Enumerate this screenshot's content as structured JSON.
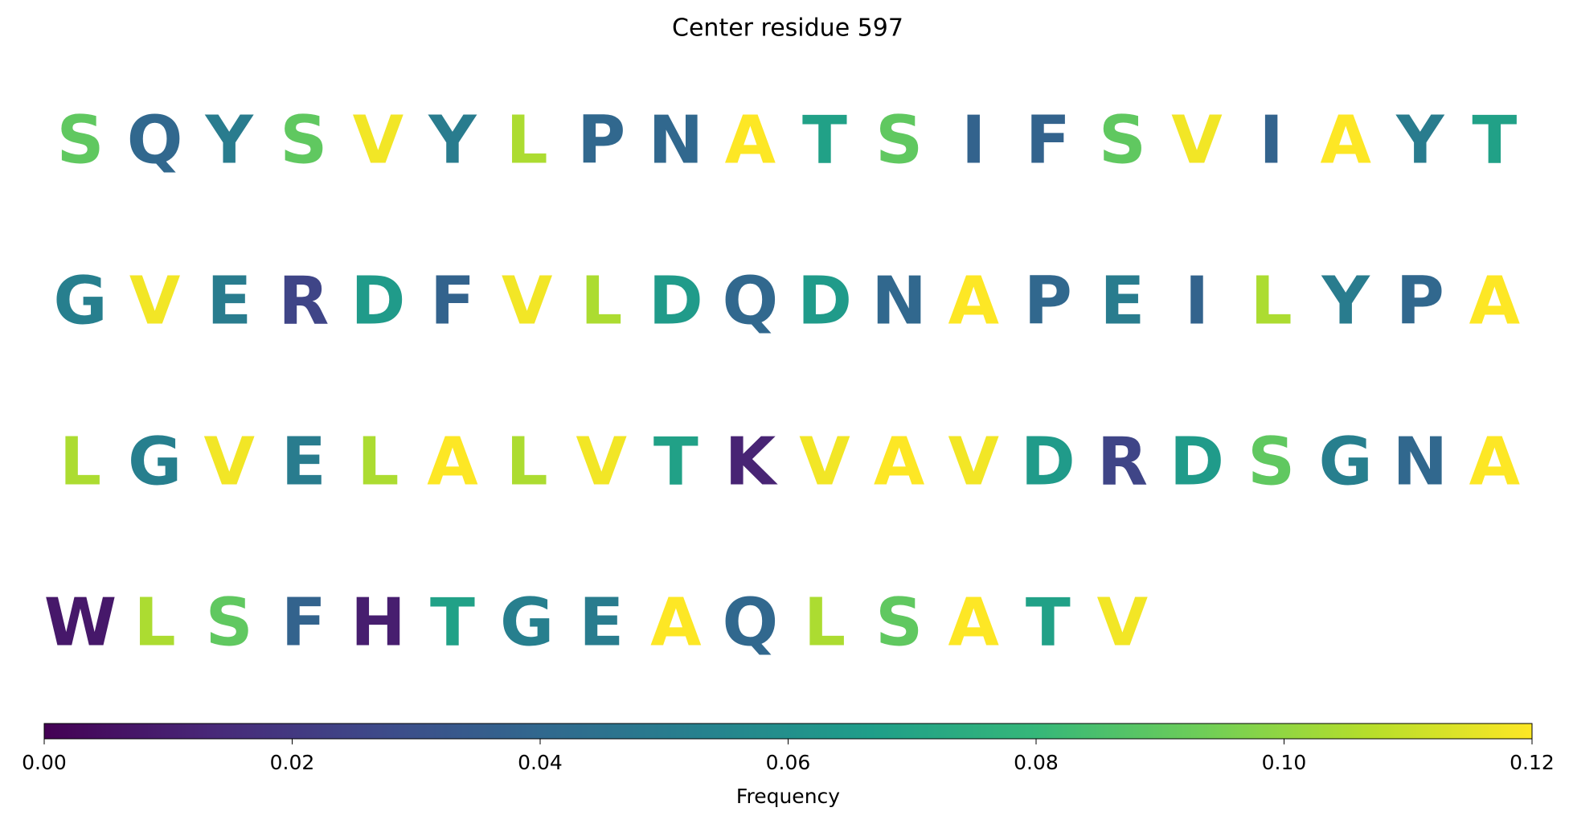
{
  "chart_data": {
    "type": "sequence",
    "title": "Center residue 597",
    "colormap": "viridis",
    "rows": [
      {
        "letters": [
          "S",
          "Q",
          "Y",
          "S",
          "V",
          "Y",
          "L",
          "P",
          "N",
          "A",
          "T",
          "S",
          "I",
          "F",
          "S",
          "V",
          "I",
          "A",
          "Y",
          "T"
        ],
        "values": [
          0.09,
          0.04,
          0.05,
          0.09,
          0.118,
          0.05,
          0.105,
          0.04,
          0.04,
          0.12,
          0.068,
          0.09,
          0.038,
          0.038,
          0.09,
          0.118,
          0.038,
          0.12,
          0.05,
          0.068
        ]
      },
      {
        "letters": [
          "G",
          "V",
          "E",
          "R",
          "D",
          "F",
          "V",
          "L",
          "D",
          "Q",
          "D",
          "N",
          "A",
          "P",
          "E",
          "I",
          "L",
          "Y",
          "P",
          "A"
        ],
        "values": [
          0.052,
          0.118,
          0.05,
          0.025,
          0.065,
          0.038,
          0.118,
          0.105,
          0.065,
          0.04,
          0.065,
          0.04,
          0.12,
          0.04,
          0.05,
          0.038,
          0.105,
          0.05,
          0.04,
          0.12
        ]
      },
      {
        "letters": [
          "L",
          "G",
          "V",
          "E",
          "L",
          "A",
          "L",
          "V",
          "T",
          "K",
          "V",
          "A",
          "V",
          "D",
          "R",
          "D",
          "S",
          "G",
          "N",
          "A"
        ],
        "values": [
          0.105,
          0.052,
          0.118,
          0.05,
          0.105,
          0.12,
          0.105,
          0.118,
          0.068,
          0.012,
          0.118,
          0.12,
          0.118,
          0.065,
          0.025,
          0.065,
          0.09,
          0.052,
          0.04,
          0.12
        ]
      },
      {
        "letters": [
          "W",
          "L",
          "S",
          "F",
          "H",
          "T",
          "G",
          "E",
          "A",
          "Q",
          "L",
          "S",
          "A",
          "T",
          "V"
        ],
        "values": [
          0.008,
          0.105,
          0.09,
          0.038,
          0.01,
          0.068,
          0.052,
          0.05,
          0.12,
          0.04,
          0.105,
          0.09,
          0.12,
          0.068,
          0.118
        ]
      }
    ],
    "colorbar": {
      "label": "Frequency",
      "lim": [
        0,
        0.12
      ],
      "ticks": [
        {
          "value": 0,
          "label": "0.00"
        },
        {
          "value": 0.02,
          "label": "0.02"
        },
        {
          "value": 0.04,
          "label": "0.04"
        },
        {
          "value": 0.06,
          "label": "0.06"
        },
        {
          "value": 0.08,
          "label": "0.08"
        },
        {
          "value": 0.1,
          "label": "0.10"
        },
        {
          "value": 0.12,
          "label": "0.12"
        }
      ]
    }
  }
}
